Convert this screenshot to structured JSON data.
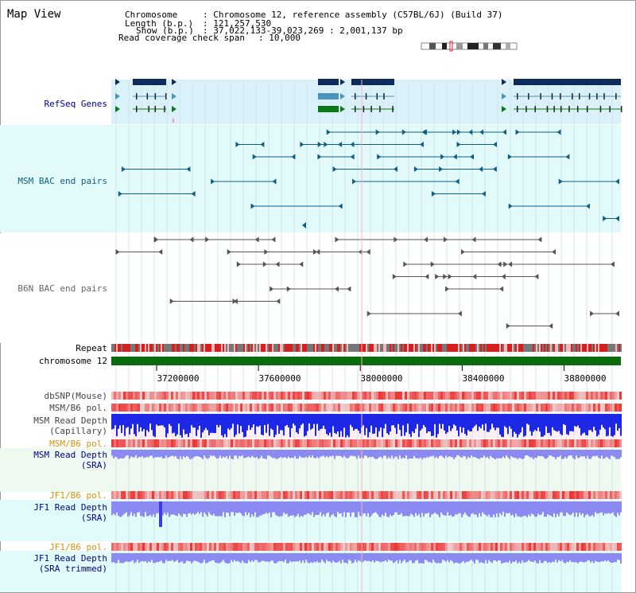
{
  "app": {
    "title": "Map View"
  },
  "header": {
    "chromosome_key": "Chromosome",
    "chromosome_val": ": Chromosome 12, reference assembly (C57BL/6J) (Build 37)",
    "length_key": "Length (b.p.)",
    "length_val": ": 121,257,530",
    "show_key": "Show (b.p.)",
    "show_val": ": 37,022,133-39,023,269 : 2,001,137 bp",
    "coverage_key": "Read coverage check span",
    "coverage_val": ": 10,000"
  },
  "tracks": {
    "refseq": "RefSeq Genes",
    "msm_bac": "MSM BAC end pairs",
    "b6n_bac": "B6N BAC end pairs",
    "repeat": "Repeat",
    "chromosome": "chromosome 12",
    "dbsnp": "dbSNP(Mouse)",
    "msm_b6_pol_1": "MSM/B6 pol.",
    "msm_depth_cap_1": "MSM Read Depth",
    "msm_depth_cap_2": "(Capillary)",
    "msm_b6_pol_2": "MSM/B6 pol.",
    "msm_depth_sra_1": "MSM Read Depth",
    "msm_depth_sra_2": "(SRA)",
    "jf1_b6_pol_1": "JF1/B6 pol.",
    "jf1_depth_sra_1": "JF1 Read Depth",
    "jf1_depth_sra_2": "(SRA)",
    "jf1_b6_pol_2": "JF1/B6 pol.",
    "jf1_depth_trim_1": "JF1 Read Depth",
    "jf1_depth_trim_2": "(SRA trimmed)"
  },
  "axis": {
    "ticks": [
      "37200000",
      "37600000",
      "38000000",
      "38400000",
      "38800000"
    ],
    "tick_values": [
      37200000,
      37600000,
      38000000,
      38400000,
      38800000
    ],
    "range": [
      37022133,
      39023269
    ]
  },
  "colors": {
    "refseq_bg": "#dbf1fa",
    "msm_bg": "#e3fafa",
    "gene_dark": "#0d2c5a",
    "gene_mid": "#4a95be",
    "gene_green": "#0a7a16",
    "msm_feature": "#0d5e8a",
    "b6n_feature": "#555555",
    "chromosome_bar": "#0c6b0c",
    "depth_blue": "#1c28e6",
    "depth_light": "#8a8af2",
    "label_blue": "#00008b",
    "label_orange": "#d4930a",
    "label_teal": "#0d5e8a",
    "label_gray": "#666666"
  }
}
